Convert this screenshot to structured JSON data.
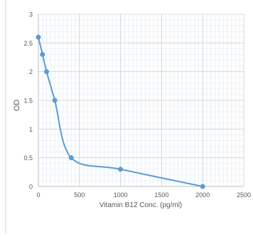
{
  "chart_data": {
    "type": "line",
    "xlabel": "Vitamin B12 Conc. (pg/ml)",
    "ylabel": "OD",
    "xlim": [
      0,
      2500
    ],
    "ylim": [
      0,
      3
    ],
    "x_ticks": [
      0,
      500,
      1000,
      1500,
      2000,
      2500
    ],
    "y_ticks": [
      0,
      0.5,
      1,
      1.5,
      2,
      2.5,
      3
    ],
    "x_tick_labels": [
      "0",
      "500",
      "1000",
      "1500",
      "2000",
      "2500"
    ],
    "y_tick_labels": [
      "0",
      "0.5",
      "1",
      "1.5",
      "2",
      "2.5",
      "3"
    ],
    "grid": true,
    "smooth": true,
    "series": [
      {
        "x": [
          0,
          50,
          100,
          200,
          400,
          1000,
          2000
        ],
        "y": [
          2.6,
          2.3,
          2.0,
          1.5,
          0.5,
          0.3,
          0.0
        ],
        "color": "#5b9bd5"
      }
    ]
  }
}
